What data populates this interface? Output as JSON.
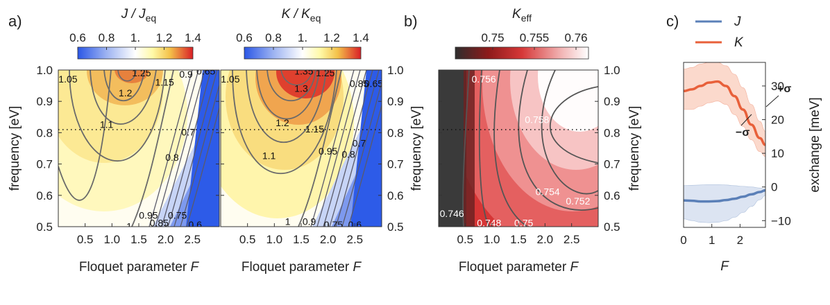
{
  "panel_labels": {
    "a": "a)",
    "b": "b)",
    "c": "c)"
  },
  "chart_data": [
    {
      "type": "heatmap",
      "panel": "a",
      "title": "J / J_eq",
      "title_main": "J / J",
      "title_sub": "eq",
      "xlabel": "Floquet parameter F",
      "xlabel_main": "Floquet parameter ",
      "xlabel_var": "F",
      "ylabel": "frequency [eV]",
      "xlim": [
        0,
        3.0
      ],
      "ylim": [
        0.5,
        1.0
      ],
      "xticks": [
        "0.5",
        "1.0",
        "1.5",
        "2.0",
        "2.5"
      ],
      "yticks": [
        "0.5",
        "0.6",
        "0.7",
        "0.8",
        "0.9",
        "1.0"
      ],
      "colorbar": {
        "min": 0.6,
        "max": 1.4,
        "ticks": [
          "0.6",
          "0.8",
          "1.",
          "1.2",
          "1.4"
        ]
      },
      "reference_line": {
        "y": 0.81,
        "style": "dotted"
      },
      "contour_labels": [
        {
          "text": "1.05",
          "x": 0.18,
          "y": 0.965
        },
        {
          "text": "1.25",
          "x": 1.55,
          "y": 0.985
        },
        {
          "text": "1.2",
          "x": 1.25,
          "y": 0.92
        },
        {
          "text": "1.15",
          "x": 1.98,
          "y": 0.955
        },
        {
          "text": "0.9",
          "x": 2.38,
          "y": 0.98
        },
        {
          "text": "0.65",
          "x": 2.75,
          "y": 0.99
        },
        {
          "text": "1.1",
          "x": 0.9,
          "y": 0.82
        },
        {
          "text": "0.7",
          "x": 2.42,
          "y": 0.795
        },
        {
          "text": "0.8",
          "x": 2.12,
          "y": 0.715
        },
        {
          "text": "0.95",
          "x": 1.68,
          "y": 0.53
        },
        {
          "text": "0.85",
          "x": 1.88,
          "y": 0.505
        },
        {
          "text": "0.75",
          "x": 2.22,
          "y": 0.53
        },
        {
          "text": "0.6",
          "x": 2.55,
          "y": 0.5
        },
        {
          "text": "1",
          "x": 1.32,
          "y": 0.495
        }
      ]
    },
    {
      "type": "heatmap",
      "panel": "a",
      "title": "K / K_eq",
      "title_main": "K / K",
      "title_sub": "eq",
      "xlabel": "Floquet parameter F",
      "xlabel_main": "Floquet parameter ",
      "xlabel_var": "F",
      "ylabel": "",
      "xlim": [
        0,
        3.0
      ],
      "ylim": [
        0.5,
        1.0
      ],
      "xticks": [
        "0.5",
        "1.0",
        "1.5",
        "2.0",
        "2.5"
      ],
      "yticks": [
        "0.5",
        "0.6",
        "0.7",
        "0.8",
        "0.9",
        "1.0"
      ],
      "colorbar": {
        "min": 0.6,
        "max": 1.4,
        "ticks": [
          "0.6",
          "0.8",
          "1.",
          "1.2",
          "1.4"
        ]
      },
      "reference_line": {
        "y": 0.81,
        "style": "dotted"
      },
      "contour_labels": [
        {
          "text": "1.05",
          "x": 0.18,
          "y": 0.965
        },
        {
          "text": "1.35",
          "x": 1.55,
          "y": 0.99
        },
        {
          "text": "1.25",
          "x": 1.95,
          "y": 0.985
        },
        {
          "text": "1.3",
          "x": 1.5,
          "y": 0.935
        },
        {
          "text": "1.2",
          "x": 1.15,
          "y": 0.825
        },
        {
          "text": "1.15",
          "x": 1.75,
          "y": 0.805
        },
        {
          "text": "1.1",
          "x": 0.9,
          "y": 0.72
        },
        {
          "text": "0.95",
          "x": 2.0,
          "y": 0.735
        },
        {
          "text": "0.8",
          "x": 2.38,
          "y": 0.725
        },
        {
          "text": "0.7",
          "x": 2.58,
          "y": 0.76
        },
        {
          "text": "0.85",
          "x": 2.58,
          "y": 0.95
        },
        {
          "text": "0.65",
          "x": 2.85,
          "y": 0.95
        },
        {
          "text": "1",
          "x": 1.25,
          "y": 0.51
        },
        {
          "text": "0.9",
          "x": 1.65,
          "y": 0.51
        },
        {
          "text": "0.75",
          "x": 2.1,
          "y": 0.5
        },
        {
          "text": "0.6",
          "x": 2.5,
          "y": 0.5
        }
      ]
    },
    {
      "type": "heatmap",
      "panel": "b",
      "title": "K_eff",
      "title_main": "K",
      "title_sub": "eff",
      "xlabel": "Floquet parameter F",
      "xlabel_main": "Floquet parameter ",
      "xlabel_var": "F",
      "ylabel": "frequency [eV]",
      "xlim": [
        0,
        3.0
      ],
      "ylim": [
        0.5,
        1.0
      ],
      "xticks": [
        "0.5",
        "1.0",
        "1.5",
        "2.0",
        "2.5"
      ],
      "yticks": [
        "0.5",
        "0.6",
        "0.7",
        "0.8",
        "0.9",
        "1.0"
      ],
      "colorbar": {
        "min": 0.7455,
        "max": 0.7615,
        "ticks": [
          "0.75",
          "0.755",
          "0.76"
        ]
      },
      "reference_line": {
        "y": 0.81,
        "style": "dotted"
      },
      "contour_labels": [
        {
          "text": "0.756",
          "x": 0.85,
          "y": 0.965
        },
        {
          "text": "0.758",
          "x": 1.85,
          "y": 0.835
        },
        {
          "text": "0.754",
          "x": 2.05,
          "y": 0.605
        },
        {
          "text": "0.752",
          "x": 2.62,
          "y": 0.575
        },
        {
          "text": "0.746",
          "x": 0.25,
          "y": 0.535
        },
        {
          "text": "0.748",
          "x": 0.95,
          "y": 0.505
        },
        {
          "text": "0.75",
          "x": 1.6,
          "y": 0.505
        }
      ]
    },
    {
      "type": "line",
      "panel": "c",
      "xlabel": "F",
      "ylabel": "exchange  [meV]",
      "xlim": [
        0,
        2.9
      ],
      "ylim": [
        -12,
        37
      ],
      "xticks": [
        0,
        1,
        2
      ],
      "yticks": [
        -10,
        0,
        10,
        20,
        30
      ],
      "legend": {
        "position": "top",
        "entries": [
          "J",
          "K"
        ]
      },
      "annotations": {
        "plus": "+σ",
        "minus": "−σ"
      },
      "x": [
        0,
        0.3,
        0.6,
        0.9,
        1.2,
        1.5,
        1.8,
        2.1,
        2.4,
        2.7,
        2.9
      ],
      "series": [
        {
          "name": "K",
          "color": "#e8603a",
          "values": [
            28.5,
            29.0,
            30.0,
            31.0,
            31.3,
            30.0,
            27.0,
            23.0,
            18.5,
            14.5,
            12.5
          ],
          "upper": [
            35.0,
            35.5,
            36.5,
            37.0,
            37.0,
            36.0,
            33.5,
            29.5,
            24.5,
            19.5,
            16.5
          ],
          "lower": [
            23.0,
            23.0,
            24.0,
            25.0,
            25.5,
            24.5,
            21.5,
            18.0,
            14.0,
            10.5,
            9.0
          ]
        },
        {
          "name": "J",
          "color": "#5b80b8",
          "values": [
            -4.0,
            -4.1,
            -4.3,
            -4.3,
            -4.2,
            -3.9,
            -3.5,
            -2.9,
            -2.2,
            -1.5,
            -1.0
          ],
          "upper": [
            0.4,
            0.5,
            0.6,
            0.7,
            0.7,
            0.6,
            0.4,
            0.2,
            0.0,
            -0.3,
            -0.6
          ],
          "lower": [
            -9.5,
            -10.0,
            -10.5,
            -10.6,
            -10.5,
            -10.0,
            -9.0,
            -7.6,
            -5.8,
            -3.8,
            -2.5
          ]
        }
      ]
    }
  ]
}
